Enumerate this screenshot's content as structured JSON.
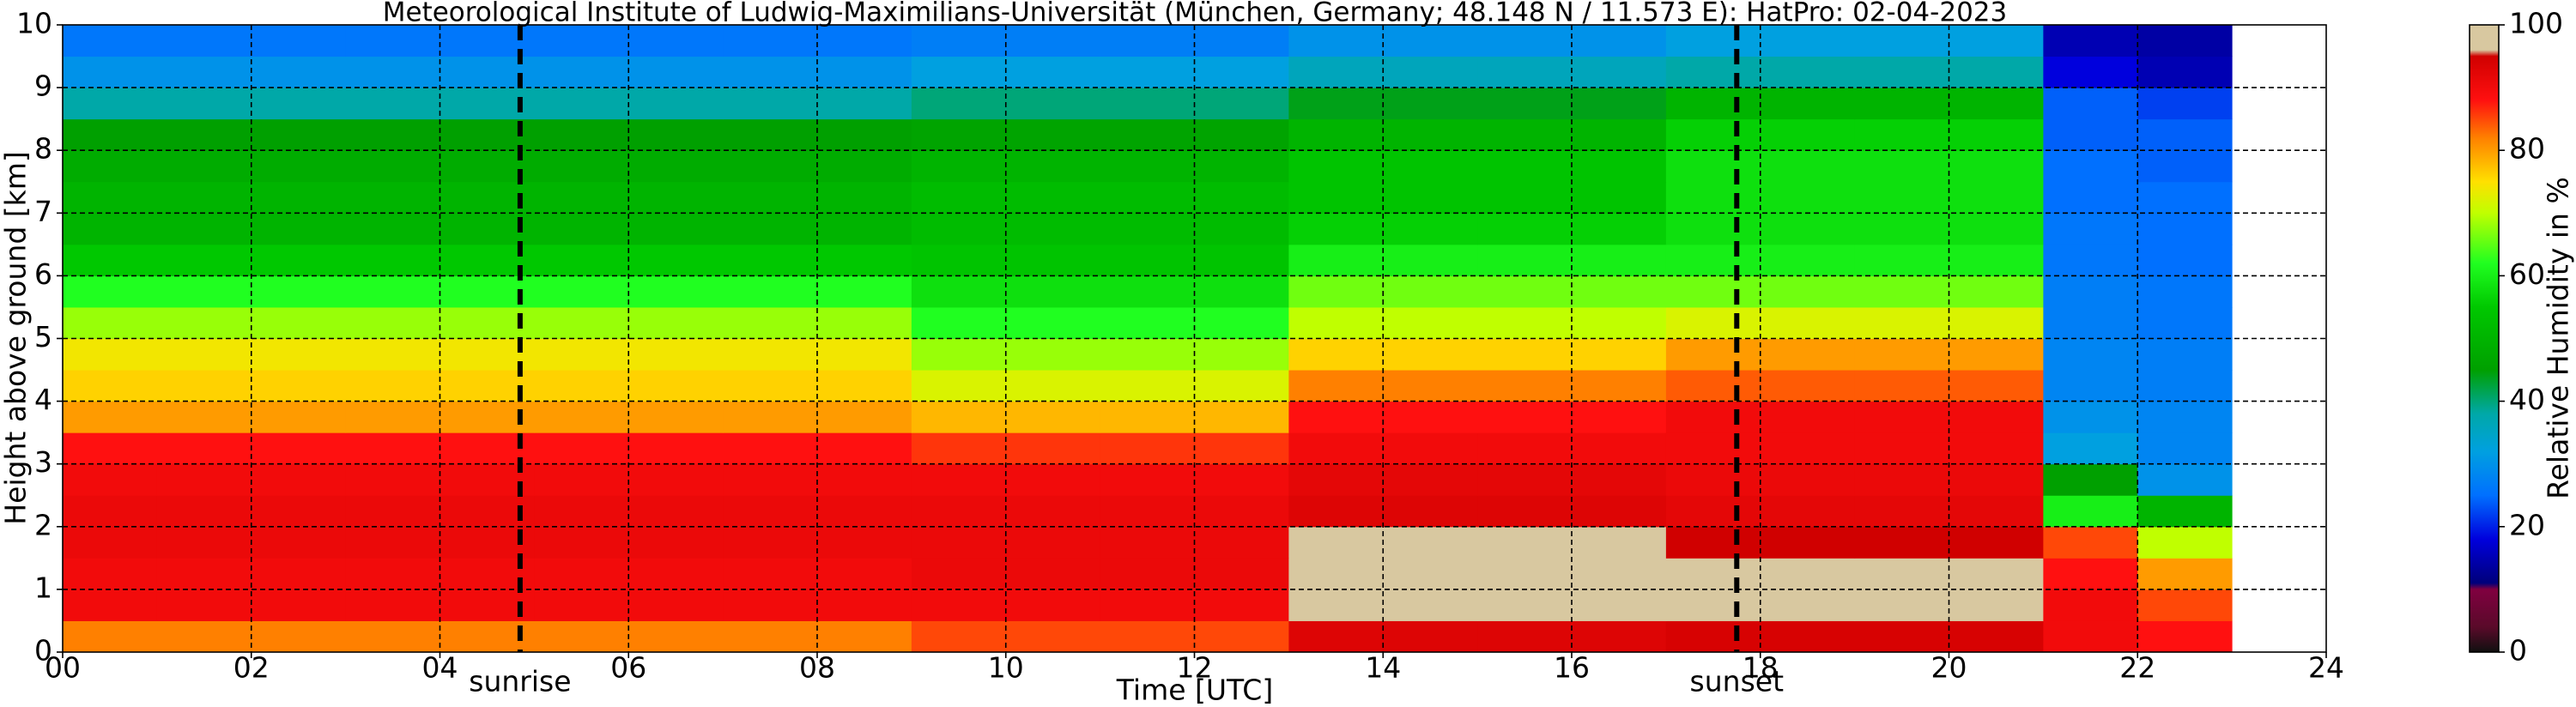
{
  "chart_data": {
    "type": "heatmap",
    "title": "Meteorological Institute of Ludwig-Maximilians-Universität (München, Germany; 48.148 N / 11.573 E):    HatPro: 02-04-2023",
    "xlabel": "Time [UTC]",
    "ylabel": "Height above ground [km]",
    "colorbar_label": "Relative Humidity in %",
    "xlim": [
      0,
      24
    ],
    "ylim": [
      0,
      10
    ],
    "xticks": [
      {
        "value": 0,
        "label": "00"
      },
      {
        "value": 2,
        "label": "02"
      },
      {
        "value": 4,
        "label": "04"
      },
      {
        "value": 6,
        "label": "06"
      },
      {
        "value": 8,
        "label": "08"
      },
      10,
      12,
      14,
      16,
      18,
      20,
      22,
      24
    ],
    "yticks": [
      0,
      1,
      2,
      3,
      4,
      5,
      6,
      7,
      8,
      9,
      10
    ],
    "clim": [
      0,
      100
    ],
    "cticks": [
      0,
      20,
      40,
      60,
      80,
      100
    ],
    "grid": true,
    "colorscale": [
      [
        0,
        "#101010"
      ],
      [
        4,
        "#5a0a2a"
      ],
      [
        10,
        "#800040"
      ],
      [
        11,
        "#00007a"
      ],
      [
        18,
        "#0000dd"
      ],
      [
        25,
        "#0070ff"
      ],
      [
        32,
        "#00a0e0"
      ],
      [
        38,
        "#00a8a8"
      ],
      [
        45,
        "#00a000"
      ],
      [
        55,
        "#00c800"
      ],
      [
        62,
        "#20ff20"
      ],
      [
        70,
        "#c0ff00"
      ],
      [
        75,
        "#ffe000"
      ],
      [
        82,
        "#ff8000"
      ],
      [
        88,
        "#ff1010"
      ],
      [
        95,
        "#d00000"
      ],
      [
        96,
        "#d8c8a0"
      ],
      [
        100,
        "#d8c8a0"
      ]
    ],
    "xbins": [
      0,
      1,
      2,
      3,
      4,
      5,
      6,
      7,
      8,
      9,
      10,
      11,
      12,
      13,
      14,
      15,
      16,
      17,
      18,
      19,
      20,
      21,
      22,
      23
    ],
    "ybins": [
      0,
      0.5,
      1,
      1.5,
      2,
      2.5,
      3,
      3.5,
      4,
      4.5,
      5,
      5.5,
      6,
      6.5,
      7,
      7.5,
      8,
      8.5,
      9,
      9.5,
      10
    ],
    "z": [
      [
        82,
        82,
        82,
        82,
        82,
        82,
        82,
        82,
        82,
        85,
        85,
        85,
        85,
        93,
        93,
        93,
        93,
        94,
        94,
        94,
        94,
        90,
        88
      ],
      [
        90,
        90,
        90,
        90,
        90,
        90,
        90,
        90,
        90,
        90,
        90,
        90,
        90,
        96,
        96,
        96,
        96,
        96,
        96,
        96,
        96,
        90,
        85
      ],
      [
        90,
        90,
        90,
        90,
        90,
        90,
        90,
        90,
        90,
        91,
        91,
        91,
        91,
        96,
        96,
        96,
        96,
        96,
        96,
        96,
        96,
        88,
        80
      ],
      [
        91,
        91,
        91,
        91,
        91,
        91,
        91,
        91,
        91,
        91,
        91,
        91,
        91,
        96,
        96,
        96,
        96,
        95,
        95,
        95,
        95,
        85,
        70
      ],
      [
        91,
        91,
        91,
        91,
        91,
        91,
        91,
        91,
        91,
        91,
        91,
        91,
        91,
        93,
        93,
        93,
        93,
        92,
        92,
        92,
        92,
        60,
        50
      ],
      [
        90,
        90,
        90,
        90,
        90,
        90,
        90,
        90,
        90,
        90,
        90,
        90,
        90,
        92,
        92,
        92,
        92,
        91,
        91,
        91,
        91,
        45,
        30
      ],
      [
        88,
        88,
        88,
        88,
        88,
        88,
        88,
        88,
        88,
        86,
        86,
        86,
        86,
        90,
        90,
        90,
        90,
        90,
        90,
        90,
        90,
        32,
        28
      ],
      [
        80,
        80,
        80,
        80,
        80,
        80,
        80,
        80,
        80,
        78,
        78,
        78,
        78,
        88,
        88,
        88,
        88,
        90,
        90,
        90,
        90,
        30,
        28
      ],
      [
        76,
        76,
        76,
        76,
        76,
        76,
        76,
        76,
        76,
        72,
        72,
        72,
        72,
        82,
        82,
        82,
        82,
        84,
        84,
        84,
        84,
        28,
        27
      ],
      [
        74,
        74,
        74,
        74,
        74,
        74,
        74,
        74,
        74,
        68,
        68,
        68,
        68,
        76,
        76,
        76,
        76,
        80,
        80,
        80,
        80,
        28,
        27
      ],
      [
        68,
        68,
        68,
        68,
        68,
        68,
        68,
        68,
        68,
        62,
        62,
        62,
        62,
        70,
        70,
        70,
        70,
        72,
        72,
        72,
        72,
        27,
        26
      ],
      [
        62,
        62,
        62,
        62,
        62,
        62,
        62,
        62,
        62,
        58,
        58,
        58,
        58,
        66,
        66,
        66,
        66,
        66,
        66,
        66,
        66,
        27,
        26
      ],
      [
        55,
        55,
        55,
        55,
        55,
        55,
        55,
        55,
        55,
        54,
        54,
        54,
        54,
        60,
        60,
        60,
        60,
        60,
        60,
        60,
        60,
        26,
        25
      ],
      [
        50,
        50,
        50,
        50,
        50,
        50,
        50,
        50,
        50,
        52,
        52,
        52,
        52,
        56,
        56,
        56,
        56,
        58,
        58,
        58,
        58,
        26,
        25
      ],
      [
        50,
        50,
        50,
        50,
        50,
        50,
        50,
        50,
        50,
        52,
        52,
        52,
        52,
        54,
        54,
        54,
        54,
        58,
        58,
        58,
        58,
        25,
        25
      ],
      [
        48,
        48,
        48,
        48,
        48,
        48,
        48,
        48,
        48,
        50,
        50,
        50,
        50,
        54,
        54,
        54,
        54,
        58,
        58,
        58,
        58,
        25,
        24
      ],
      [
        45,
        45,
        45,
        45,
        45,
        45,
        45,
        45,
        45,
        46,
        46,
        46,
        46,
        50,
        50,
        50,
        50,
        56,
        56,
        56,
        56,
        24,
        24
      ],
      [
        38,
        38,
        38,
        38,
        38,
        38,
        38,
        38,
        38,
        40,
        40,
        40,
        40,
        44,
        44,
        44,
        44,
        50,
        50,
        50,
        50,
        24,
        22
      ],
      [
        30,
        30,
        30,
        30,
        30,
        30,
        30,
        30,
        30,
        32,
        32,
        32,
        32,
        36,
        36,
        36,
        36,
        38,
        38,
        38,
        38,
        18,
        15
      ],
      [
        26,
        26,
        26,
        26,
        26,
        26,
        26,
        26,
        26,
        27,
        27,
        27,
        27,
        30,
        30,
        30,
        30,
        32,
        32,
        32,
        32,
        15,
        14
      ]
    ],
    "annotations": [
      {
        "text": "sunrise",
        "x": 4.85
      },
      {
        "text": "sunset",
        "x": 17.75
      }
    ]
  }
}
